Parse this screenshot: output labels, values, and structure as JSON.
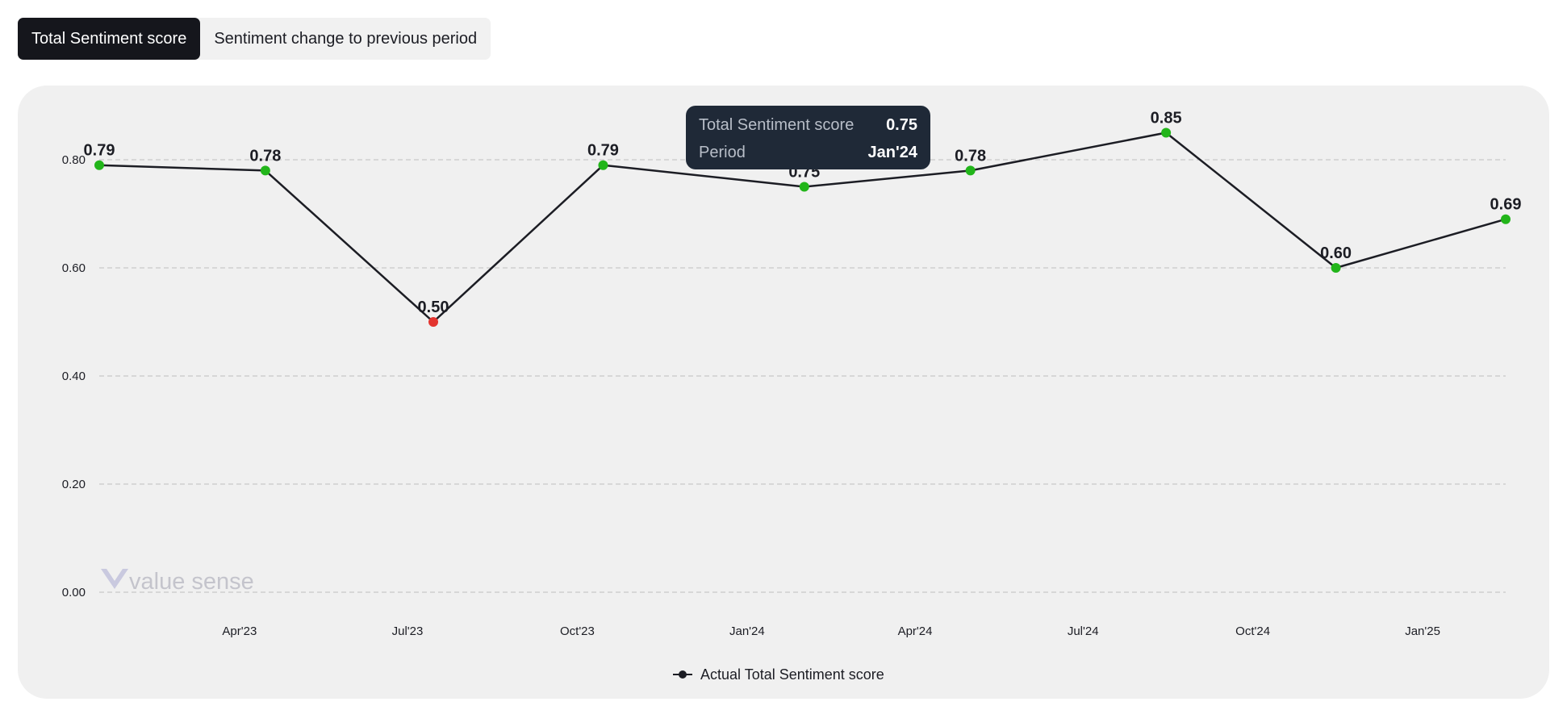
{
  "tabs": [
    {
      "label": "Total Sentiment score",
      "active": true
    },
    {
      "label": "Sentiment change to previous period",
      "active": false
    }
  ],
  "watermark": "value sense",
  "tooltip": {
    "series_label": "Total Sentiment score",
    "series_value": "0.75",
    "period_label": "Period",
    "period_value": "Jan'24"
  },
  "legend": {
    "label": "Actual Total Sentiment score"
  },
  "colors": {
    "line": "#1c1d24",
    "positive_point": "#22b51a",
    "negative_point": "#e3342f",
    "grid": "#c8c8c8",
    "card_background": "#f0f0f0"
  },
  "chart_data": {
    "type": "line",
    "series": [
      {
        "name": "Actual Total Sentiment score",
        "points": [
          {
            "date": "2023-01-15",
            "value": 0.79,
            "label": "0.79",
            "status": "positive"
          },
          {
            "date": "2023-04-15",
            "value": 0.78,
            "label": "0.78",
            "status": "positive"
          },
          {
            "date": "2023-07-15",
            "value": 0.5,
            "label": "0.50",
            "status": "negative"
          },
          {
            "date": "2023-10-15",
            "value": 0.79,
            "label": "0.79",
            "status": "positive"
          },
          {
            "date": "2024-02-01",
            "value": 0.75,
            "label": "0.75",
            "status": "positive"
          },
          {
            "date": "2024-05-01",
            "value": 0.78,
            "label": "0.78",
            "status": "positive"
          },
          {
            "date": "2024-08-15",
            "value": 0.85,
            "label": "0.85",
            "status": "positive"
          },
          {
            "date": "2024-11-15",
            "value": 0.6,
            "label": "0.60",
            "status": "positive"
          },
          {
            "date": "2025-02-15",
            "value": 0.69,
            "label": "0.69",
            "status": "positive"
          }
        ]
      }
    ],
    "x_ticks": [
      {
        "date": "2023-04-01",
        "label": "Apr'23"
      },
      {
        "date": "2023-07-01",
        "label": "Jul'23"
      },
      {
        "date": "2023-10-01",
        "label": "Oct'23"
      },
      {
        "date": "2024-01-01",
        "label": "Jan'24"
      },
      {
        "date": "2024-04-01",
        "label": "Apr'24"
      },
      {
        "date": "2024-07-01",
        "label": "Jul'24"
      },
      {
        "date": "2024-10-01",
        "label": "Oct'24"
      },
      {
        "date": "2025-01-01",
        "label": "Jan'25"
      }
    ],
    "y_ticks": [
      {
        "value": 0.0,
        "label": "0.00"
      },
      {
        "value": 0.2,
        "label": "0.20"
      },
      {
        "value": 0.4,
        "label": "0.40"
      },
      {
        "value": 0.6,
        "label": "0.60"
      },
      {
        "value": 0.8,
        "label": "0.80"
      }
    ],
    "ylim": [
      0,
      0.8
    ],
    "grid": true,
    "grid_style": "dashed",
    "legend_position": "bottom-center"
  }
}
